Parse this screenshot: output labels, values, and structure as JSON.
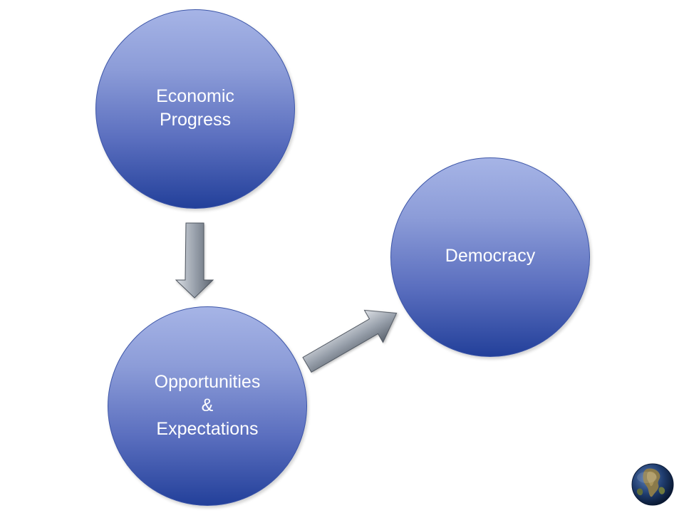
{
  "diagram": {
    "nodes": [
      {
        "id": "economic-progress",
        "label": "Economic\nProgress"
      },
      {
        "id": "opportunities-expectations",
        "label": "Opportunities\n&\nExpectations"
      },
      {
        "id": "democracy",
        "label": "Democracy"
      }
    ],
    "edges": [
      {
        "from": "economic-progress",
        "to": "opportunities-expectations"
      },
      {
        "from": "opportunities-expectations",
        "to": "democracy"
      }
    ]
  },
  "colors": {
    "node_top": "#a6b4e6",
    "node_bottom": "#23409a",
    "node_text": "#ffffff",
    "arrow_light": "#d4d8de",
    "arrow_dark": "#5d6570"
  },
  "icons": {
    "corner_logo": "globe-icon"
  }
}
